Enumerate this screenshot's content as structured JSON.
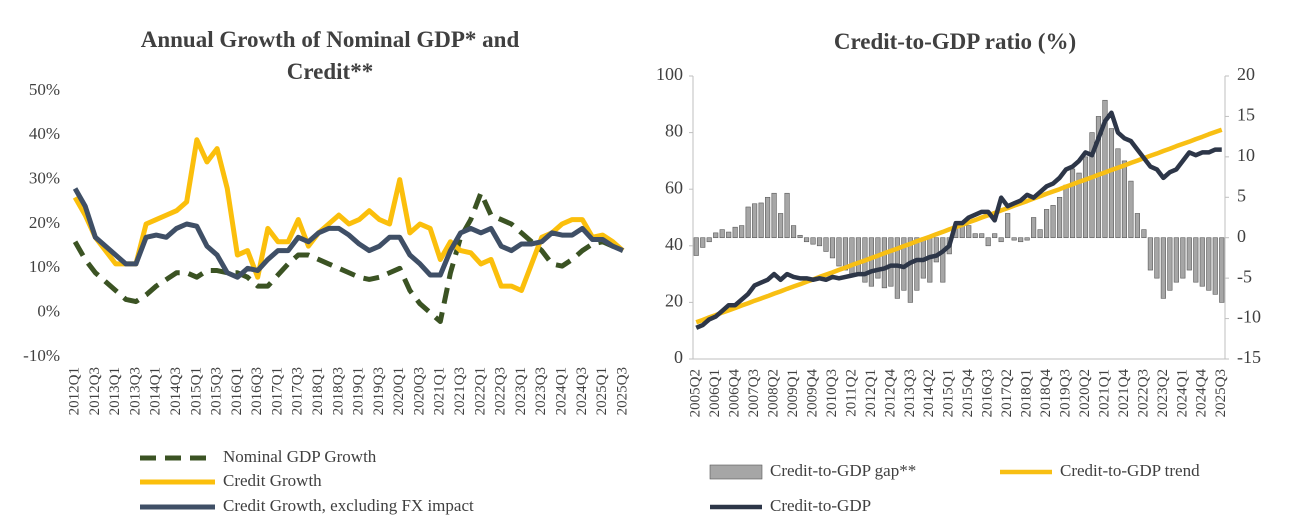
{
  "chart_data": [
    {
      "type": "line",
      "title": "Annual Growth of Nominal GDP* and Credit**",
      "categories": [
        "2012Q1",
        null,
        "2012Q3",
        null,
        "2013Q1",
        null,
        "2013Q3",
        null,
        "2014Q1",
        null,
        "2014Q3",
        null,
        "2015Q1",
        null,
        "2015Q3",
        null,
        "2016Q1",
        null,
        "2016Q3",
        null,
        "2017Q1",
        null,
        "2017Q3",
        null,
        "2018Q1",
        null,
        "2018Q3",
        null,
        "2019Q1",
        null,
        "2019Q3",
        null,
        "2020Q1",
        null,
        "2020Q3",
        null,
        "2021Q1",
        null,
        "2021Q3",
        null,
        "2022Q1",
        null,
        "2022Q3",
        null,
        "2023Q1",
        null,
        "2023Q3",
        null,
        "2024Q1",
        null,
        "2024Q3",
        null,
        "2025Q1",
        null,
        "2025Q3"
      ],
      "ylim": [
        -10,
        50
      ],
      "yticks": [
        {
          "value": -10,
          "label": "-10%"
        },
        {
          "value": 0,
          "label": "0%"
        },
        {
          "value": 10,
          "label": "10%"
        },
        {
          "value": 20,
          "label": "20%"
        },
        {
          "value": 30,
          "label": "30%"
        },
        {
          "value": 40,
          "label": "40%"
        },
        {
          "value": 50,
          "label": "50%"
        }
      ],
      "series": [
        {
          "name": "Nominal GDP Growth",
          "color": "#3b5323",
          "line_style": "dashed",
          "values": [
            16,
            12,
            9,
            7,
            5,
            3,
            2.5,
            4,
            6,
            7.5,
            9,
            9,
            8,
            9.5,
            9.5,
            9,
            9,
            8,
            6,
            6,
            8.5,
            11,
            13,
            13,
            12,
            11,
            10,
            9,
            8,
            7.5,
            8,
            9,
            10,
            5,
            2,
            0,
            -2,
            9,
            17,
            21,
            27,
            22,
            21,
            20,
            18,
            16,
            14,
            11,
            10.5,
            12,
            14,
            15.5,
            16,
            15,
            14
          ]
        },
        {
          "name": "Credit Growth",
          "color": "#fbbf0c",
          "line_style": "solid",
          "values": [
            26,
            22,
            17,
            14,
            11,
            11,
            11,
            20,
            21,
            22,
            23,
            25,
            39,
            34,
            37,
            28,
            13,
            14,
            8,
            19,
            16,
            16,
            21,
            15,
            18,
            20,
            22,
            20,
            21,
            23,
            21,
            20,
            30,
            18,
            20,
            19,
            12,
            16,
            14,
            13.5,
            11,
            12,
            6,
            6,
            5,
            11,
            17,
            18,
            20,
            21,
            21,
            17,
            17.5,
            16,
            14
          ]
        },
        {
          "name": "Credit Growth, excluding FX impact",
          "color": "#3f4f66",
          "line_style": "solid",
          "values": [
            28,
            24,
            17,
            15,
            13,
            11,
            11,
            17,
            17.5,
            17,
            19,
            20,
            19.5,
            15,
            13,
            9,
            8,
            10,
            9.5,
            12,
            14,
            14,
            17,
            16,
            18,
            19,
            19,
            17.5,
            15.5,
            14,
            15,
            17,
            17,
            13,
            11,
            8.5,
            8.5,
            14,
            18,
            19,
            18,
            19,
            15,
            14,
            15.5,
            15.5,
            16,
            18,
            17.5,
            17.5,
            19,
            16.5,
            16.5,
            15,
            14
          ]
        }
      ]
    },
    {
      "type": "combo",
      "title": "Credit-to-GDP ratio (%)",
      "frame": true,
      "categories": [
        "2005Q2",
        null,
        null,
        "2006Q1",
        null,
        null,
        "2006Q4",
        null,
        null,
        "2007Q3",
        null,
        null,
        "2008Q2",
        null,
        null,
        "2009Q1",
        null,
        null,
        "2009Q4",
        null,
        null,
        "2010Q3",
        null,
        null,
        "2011Q2",
        null,
        null,
        "2012Q1",
        null,
        null,
        "2012Q4",
        null,
        null,
        "2013Q3",
        null,
        null,
        "2014Q2",
        null,
        null,
        "2015Q1",
        null,
        null,
        "2015Q4",
        null,
        null,
        "2016Q3",
        null,
        null,
        "2017Q2",
        null,
        null,
        "2018Q1",
        null,
        null,
        "2018Q4",
        null,
        null,
        "2019Q3",
        null,
        null,
        "2020Q2",
        null,
        null,
        "2021Q1",
        null,
        null,
        "2021Q4",
        null,
        null,
        "2022Q3",
        null,
        null,
        "2023Q2",
        null,
        null,
        "2024Q1",
        null,
        null,
        "2024Q4",
        null,
        null,
        "2025Q3"
      ],
      "ylim": [
        0,
        100
      ],
      "yticks": [
        0,
        20,
        40,
        60,
        80,
        100
      ],
      "y2lim": [
        -15,
        20
      ],
      "y2ticks": [
        -15,
        -10,
        -5,
        0,
        5,
        10,
        15,
        20
      ],
      "series": [
        {
          "name": "Credit-to-GDP gap**",
          "type": "bar",
          "axis": "y2",
          "color": "#a6a6a6",
          "values": [
            -2.2,
            -1.2,
            -0.5,
            0.6,
            1,
            0.7,
            1.3,
            1.5,
            3.8,
            4.2,
            4.3,
            5,
            5.5,
            3,
            5.5,
            1.5,
            0.3,
            -0.5,
            -0.8,
            -1,
            -1.7,
            -2.5,
            -3.5,
            -4,
            -4.5,
            -4.5,
            -5.5,
            -6,
            -5,
            -6.2,
            -6,
            -7.5,
            -6.5,
            -8,
            -6.5,
            -5,
            -5.5,
            -3,
            -5.5,
            -2,
            1.5,
            2,
            1.5,
            0.5,
            0.5,
            -1,
            0.5,
            -0.5,
            3,
            -0.3,
            -0.5,
            -0.3,
            2.5,
            1,
            3.5,
            4,
            5,
            6.5,
            8.5,
            8,
            10,
            13,
            15,
            17,
            13.5,
            11,
            9.5,
            7,
            3,
            1,
            -4,
            -5,
            -7.5,
            -6.5,
            -5.5,
            -5,
            -4,
            -5.5,
            -6,
            -6.5,
            -7,
            -8
          ]
        },
        {
          "name": "Credit-to-GDP trend",
          "type": "line",
          "color": "#f8bf13",
          "values": [
            13.0,
            13.8,
            14.7,
            15.5,
            16.4,
            17.2,
            18.0,
            18.9,
            19.7,
            20.6,
            21.4,
            22.2,
            23.1,
            23.9,
            24.8,
            25.6,
            26.4,
            27.3,
            28.1,
            29.0,
            29.8,
            30.6,
            31.5,
            32.3,
            33.2,
            34.0,
            34.8,
            35.7,
            36.5,
            37.4,
            38.2,
            39.0,
            39.9,
            40.7,
            41.6,
            42.4,
            43.2,
            44.1,
            44.9,
            45.8,
            46.6,
            47.4,
            48.3,
            49.1,
            50.0,
            50.8,
            51.6,
            52.5,
            53.3,
            54.2,
            55.0,
            55.8,
            56.7,
            57.5,
            58.4,
            59.2,
            60.0,
            60.9,
            61.7,
            62.6,
            63.4,
            64.2,
            65.1,
            65.9,
            66.8,
            67.6,
            68.4,
            69.3,
            70.1,
            71.0,
            71.8,
            72.6,
            73.5,
            74.3,
            75.2,
            76.0,
            76.8,
            77.7,
            78.5,
            79.4,
            80.2,
            81.0
          ]
        },
        {
          "name": "Credit-to-GDP",
          "type": "line",
          "color": "#2d3648",
          "values": [
            11,
            12,
            14,
            15,
            17,
            19,
            19,
            21,
            23,
            26,
            27,
            28,
            30,
            28,
            30,
            29,
            28.5,
            28.5,
            28,
            28.5,
            28,
            29,
            28.5,
            29,
            29.5,
            30,
            30,
            31,
            31.5,
            32,
            33,
            33,
            32.5,
            34,
            35,
            35,
            36,
            36.5,
            38,
            40,
            48,
            48,
            50,
            51,
            52,
            52,
            49,
            57,
            54,
            55,
            56,
            58,
            57,
            59,
            61,
            62,
            64,
            67,
            68,
            70,
            73,
            72,
            78,
            84,
            87,
            80,
            78,
            77,
            74,
            71,
            68,
            67,
            64,
            66,
            67,
            70,
            73,
            72,
            73,
            73,
            74,
            74
          ]
        }
      ]
    }
  ]
}
